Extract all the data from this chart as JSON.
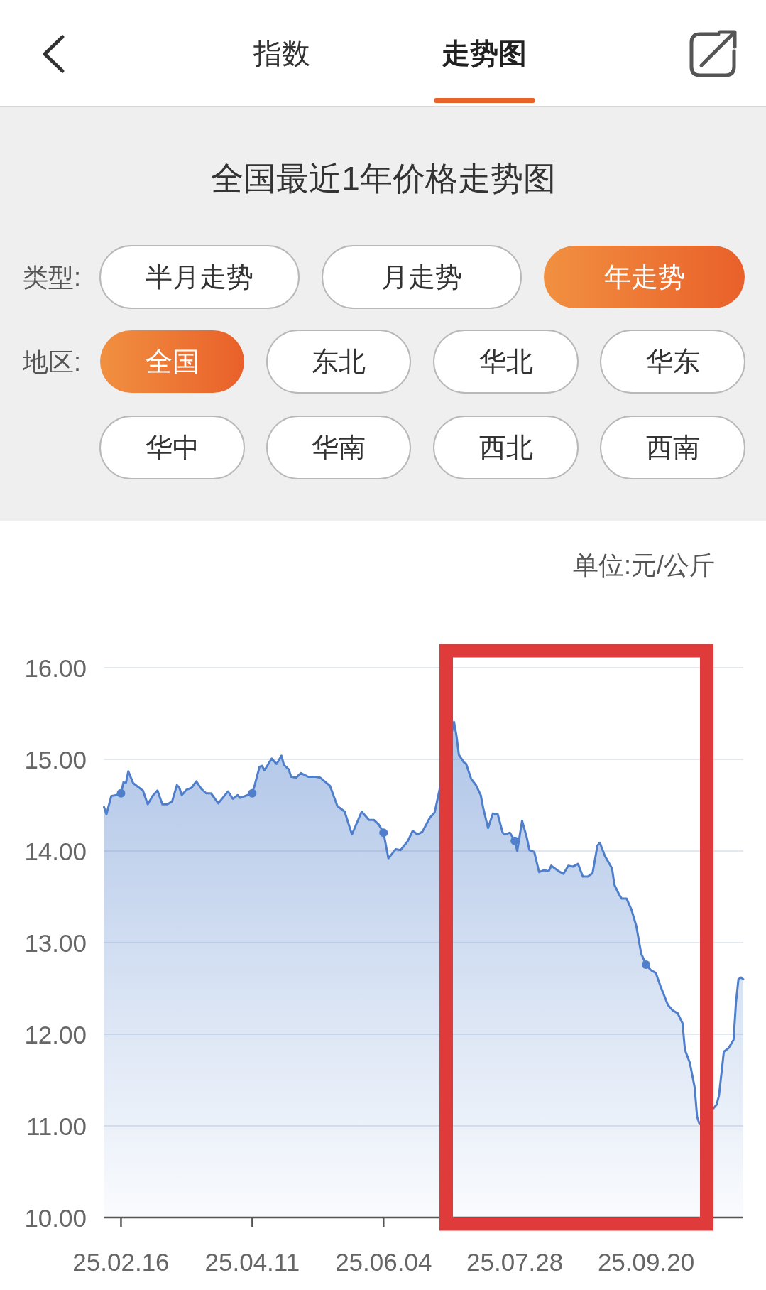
{
  "chart_data": {
    "type": "area",
    "title": "全国最近1年价格走势图",
    "ylabel": "单位:元/公斤",
    "annotations": [
      "指数",
      "走势图",
      "类型:",
      "半月走势",
      "月走势",
      "年走势",
      "地区:",
      "全国",
      "东北",
      "华北",
      "华东",
      "华中",
      "华南",
      "西北",
      "西南"
    ],
    "series": [
      {
        "color": "#4f7fcb",
        "x": [
          "--02-09",
          "--02-10",
          "--02-12",
          "--02-14",
          "--02-16",
          "--02-17",
          "--02-18",
          "--02-19",
          "--02-21",
          "--02-25",
          "--02-27",
          "--03-01",
          "--03-03",
          "--03-05",
          "--03-07",
          "--03-09",
          "--03-11",
          "--03-12",
          "--03-13",
          "--03-15",
          "--03-17",
          "--03-19",
          "--03-21",
          "--03-23",
          "--03-25",
          "--03-28",
          "--04-01",
          "--04-03",
          "--04-05",
          "--04-06",
          "--04-08",
          "--04-11",
          "--04-12",
          "--04-14",
          "--04-15",
          "--04-16",
          "--04-19",
          "--04-21",
          "--04-23",
          "--04-24",
          "--04-26",
          "--04-27",
          "--04-29",
          "--05-01",
          "--05-04",
          "--05-07",
          "--05-09",
          "--05-13",
          "--05-16",
          "--05-19",
          "--05-22",
          "--05-26",
          "--05-29",
          "--05-31",
          "--06-02",
          "--06-04",
          "--06-06",
          "--06-09",
          "--06-11",
          "--06-14",
          "--06-16",
          "--06-18",
          "--06-20",
          "--06-23",
          "--06-25",
          "--06-26",
          "--07-03",
          "--07-04",
          "--07-05",
          "--07-06",
          "--07-07",
          "--07-08",
          "--07-10",
          "--07-12",
          "--07-14",
          "--07-15",
          "--07-17",
          "--07-19",
          "--07-21",
          "--07-23",
          "--07-24",
          "--07-26",
          "--07-28",
          "--07-29",
          "--07-31",
          "--08-02",
          "--08-03",
          "--08-05",
          "--08-07",
          "--08-09",
          "--08-11",
          "--08-12",
          "--08-15",
          "--08-17",
          "--08-19",
          "--08-21",
          "--08-23",
          "--08-25",
          "--08-27",
          "--08-29",
          "--08-31",
          "--09-01",
          "--09-03",
          "--09-06",
          "--09-07",
          "--09-09",
          "--09-10",
          "--09-12",
          "--09-14",
          "--09-16",
          "--09-18",
          "--09-20",
          "--09-22",
          "--09-24",
          "--09-26",
          "--09-29",
          "--10-01",
          "--10-03",
          "--10-05",
          "--10-06",
          "--10-08",
          "--10-10",
          "--10-11",
          "--10-12",
          "--10-19",
          "--10-20",
          "--10-22",
          "--10-24",
          "--10-26",
          "--10-27",
          "--10-28",
          "--10-29",
          "--10-30"
        ],
        "values": [
          14.48,
          14.4,
          14.6,
          14.61,
          14.63,
          14.75,
          14.74,
          14.87,
          14.74,
          14.66,
          14.51,
          14.6,
          14.66,
          14.51,
          14.51,
          14.54,
          14.72,
          14.69,
          14.61,
          14.67,
          14.69,
          14.76,
          14.68,
          14.63,
          14.63,
          14.52,
          14.65,
          14.57,
          14.61,
          14.58,
          14.6,
          14.63,
          14.72,
          14.92,
          14.93,
          14.88,
          15.01,
          14.95,
          15.04,
          14.94,
          14.89,
          14.81,
          14.8,
          14.85,
          14.81,
          14.81,
          14.8,
          14.71,
          14.49,
          14.43,
          14.18,
          14.43,
          14.34,
          14.34,
          14.29,
          14.2,
          13.92,
          14.02,
          14.01,
          14.11,
          14.22,
          14.18,
          14.21,
          14.36,
          14.42,
          14.54,
          15.41,
          15.26,
          15.05,
          15.01,
          14.97,
          14.95,
          14.79,
          14.72,
          14.61,
          14.47,
          14.25,
          14.41,
          14.4,
          14.2,
          14.18,
          14.2,
          14.11,
          14.0,
          14.33,
          14.14,
          14.01,
          13.99,
          13.77,
          13.79,
          13.78,
          13.84,
          13.78,
          13.75,
          13.84,
          13.83,
          13.86,
          13.72,
          13.72,
          13.76,
          14.06,
          14.09,
          13.95,
          13.81,
          13.63,
          13.52,
          13.48,
          13.48,
          13.36,
          13.18,
          12.88,
          12.76,
          12.7,
          12.67,
          12.52,
          12.32,
          12.26,
          12.23,
          12.12,
          11.83,
          11.69,
          11.42,
          11.1,
          11.02,
          11.23,
          11.33,
          11.81,
          11.85,
          11.94,
          12.35,
          12.6,
          12.62,
          12.6
        ]
      },
      {
        "type": "scatter",
        "color": "#4f7fcb",
        "x": [
          "--02-16",
          "--04-11",
          "--06-04",
          "--07-28",
          "--09-20"
        ],
        "values": [
          14.63,
          14.63,
          14.2,
          14.11,
          12.76
        ]
      }
    ],
    "xlim": [
      "--02-09",
      "--10-30"
    ],
    "xticks": [
      {
        "value": "--02-16",
        "label": "25.02.16"
      },
      {
        "value": "--04-11",
        "label": "25.04.11"
      },
      {
        "value": "--06-04",
        "label": "25.06.04"
      },
      {
        "value": "--07-28",
        "label": "25.07.28"
      },
      {
        "value": "--09-20",
        "label": "25.09.20"
      }
    ],
    "ylim": [
      10,
      16
    ],
    "yticks": [
      {
        "value": 10,
        "label": "10.00"
      },
      {
        "value": 11,
        "label": "11.00"
      },
      {
        "value": 12,
        "label": "12.00"
      },
      {
        "value": 13,
        "label": "13.00"
      },
      {
        "value": 14,
        "label": "14.00"
      },
      {
        "value": 15,
        "label": "15.00"
      },
      {
        "value": 16,
        "label": "16.00"
      }
    ],
    "grid": "y"
  }
}
